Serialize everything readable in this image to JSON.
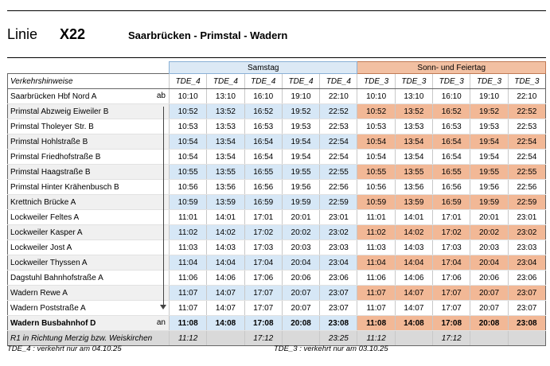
{
  "header": {
    "linie_label": "Linie",
    "line_number": "X22",
    "route": "Saarbrücken -  Primstal - Wadern"
  },
  "groups": {
    "samstag": "Samstag",
    "sonntag": "Sonn- und Feiertag"
  },
  "codes_row": {
    "label": "Verkehrshinweise",
    "codes": [
      "TDE_4",
      "TDE_4",
      "TDE_4",
      "TDE_4",
      "TDE_4",
      "TDE_3",
      "TDE_3",
      "TDE_3",
      "TDE_3",
      "TDE_3"
    ]
  },
  "stops": [
    {
      "name": "Saarbrücken Hbf Nord A",
      "marker": "ab",
      "times": [
        "10:10",
        "13:10",
        "16:10",
        "19:10",
        "22:10",
        "10:10",
        "13:10",
        "16:10",
        "19:10",
        "22:10"
      ]
    },
    {
      "name": "Primstal Abzweig Eiweiler B",
      "marker": "",
      "times": [
        "10:52",
        "13:52",
        "16:52",
        "19:52",
        "22:52",
        "10:52",
        "13:52",
        "16:52",
        "19:52",
        "22:52"
      ]
    },
    {
      "name": "Primstal Tholeyer Str. B",
      "marker": "",
      "times": [
        "10:53",
        "13:53",
        "16:53",
        "19:53",
        "22:53",
        "10:53",
        "13:53",
        "16:53",
        "19:53",
        "22:53"
      ]
    },
    {
      "name": "Primstal Hohlstraße B",
      "marker": "",
      "times": [
        "10:54",
        "13:54",
        "16:54",
        "19:54",
        "22:54",
        "10:54",
        "13:54",
        "16:54",
        "19:54",
        "22:54"
      ]
    },
    {
      "name": "Primstal Friedhofstraße B",
      "marker": "",
      "times": [
        "10:54",
        "13:54",
        "16:54",
        "19:54",
        "22:54",
        "10:54",
        "13:54",
        "16:54",
        "19:54",
        "22:54"
      ]
    },
    {
      "name": "Primstal Haagstraße B",
      "marker": "",
      "times": [
        "10:55",
        "13:55",
        "16:55",
        "19:55",
        "22:55",
        "10:55",
        "13:55",
        "16:55",
        "19:55",
        "22:55"
      ]
    },
    {
      "name": "Primstal Hinter Krähenbusch B",
      "marker": "",
      "times": [
        "10:56",
        "13:56",
        "16:56",
        "19:56",
        "22:56",
        "10:56",
        "13:56",
        "16:56",
        "19:56",
        "22:56"
      ]
    },
    {
      "name": "Krettnich Brücke A",
      "marker": "",
      "times": [
        "10:59",
        "13:59",
        "16:59",
        "19:59",
        "22:59",
        "10:59",
        "13:59",
        "16:59",
        "19:59",
        "22:59"
      ]
    },
    {
      "name": "Lockweiler Feltes A",
      "marker": "",
      "times": [
        "11:01",
        "14:01",
        "17:01",
        "20:01",
        "23:01",
        "11:01",
        "14:01",
        "17:01",
        "20:01",
        "23:01"
      ]
    },
    {
      "name": "Lockweiler Kasper A",
      "marker": "",
      "times": [
        "11:02",
        "14:02",
        "17:02",
        "20:02",
        "23:02",
        "11:02",
        "14:02",
        "17:02",
        "20:02",
        "23:02"
      ]
    },
    {
      "name": "Lockweiler Jost A",
      "marker": "",
      "times": [
        "11:03",
        "14:03",
        "17:03",
        "20:03",
        "23:03",
        "11:03",
        "14:03",
        "17:03",
        "20:03",
        "23:03"
      ]
    },
    {
      "name": "Lockweiler Thyssen A",
      "marker": "",
      "times": [
        "11:04",
        "14:04",
        "17:04",
        "20:04",
        "23:04",
        "11:04",
        "14:04",
        "17:04",
        "20:04",
        "23:04"
      ]
    },
    {
      "name": "Dagstuhl Bahnhofstraße A",
      "marker": "",
      "times": [
        "11:06",
        "14:06",
        "17:06",
        "20:06",
        "23:06",
        "11:06",
        "14:06",
        "17:06",
        "20:06",
        "23:06"
      ]
    },
    {
      "name": "Wadern Rewe A",
      "marker": "",
      "times": [
        "11:07",
        "14:07",
        "17:07",
        "20:07",
        "23:07",
        "11:07",
        "14:07",
        "17:07",
        "20:07",
        "23:07"
      ]
    },
    {
      "name": "Wadern Poststraße A",
      "marker": "",
      "times": [
        "11:07",
        "14:07",
        "17:07",
        "20:07",
        "23:07",
        "11:07",
        "14:07",
        "17:07",
        "20:07",
        "23:07"
      ]
    },
    {
      "name": "Wadern Busbahnhof D",
      "marker": "an",
      "times": [
        "11:08",
        "14:08",
        "17:08",
        "20:08",
        "23:08",
        "11:08",
        "14:08",
        "17:08",
        "20:08",
        "23:08"
      ]
    }
  ],
  "connection_row": {
    "label": "R1 in Richtung Merzig bzw. Weiskirchen",
    "times": [
      "11:12",
      "",
      "17:12",
      "",
      "23:25",
      "11:12",
      "",
      "17:12",
      "",
      ""
    ]
  },
  "footnotes": [
    "TDE_4  :  verkehrt nur am 04.10.25",
    "TDE_3  :  verkehrt nur am 03.10.25"
  ],
  "colors": {
    "samstag_header": "#dce9f5",
    "sonntag_header": "#f2c0a2",
    "samstag_highlight": "#d6e7f6",
    "sonntag_highlight": "#f2b896"
  }
}
